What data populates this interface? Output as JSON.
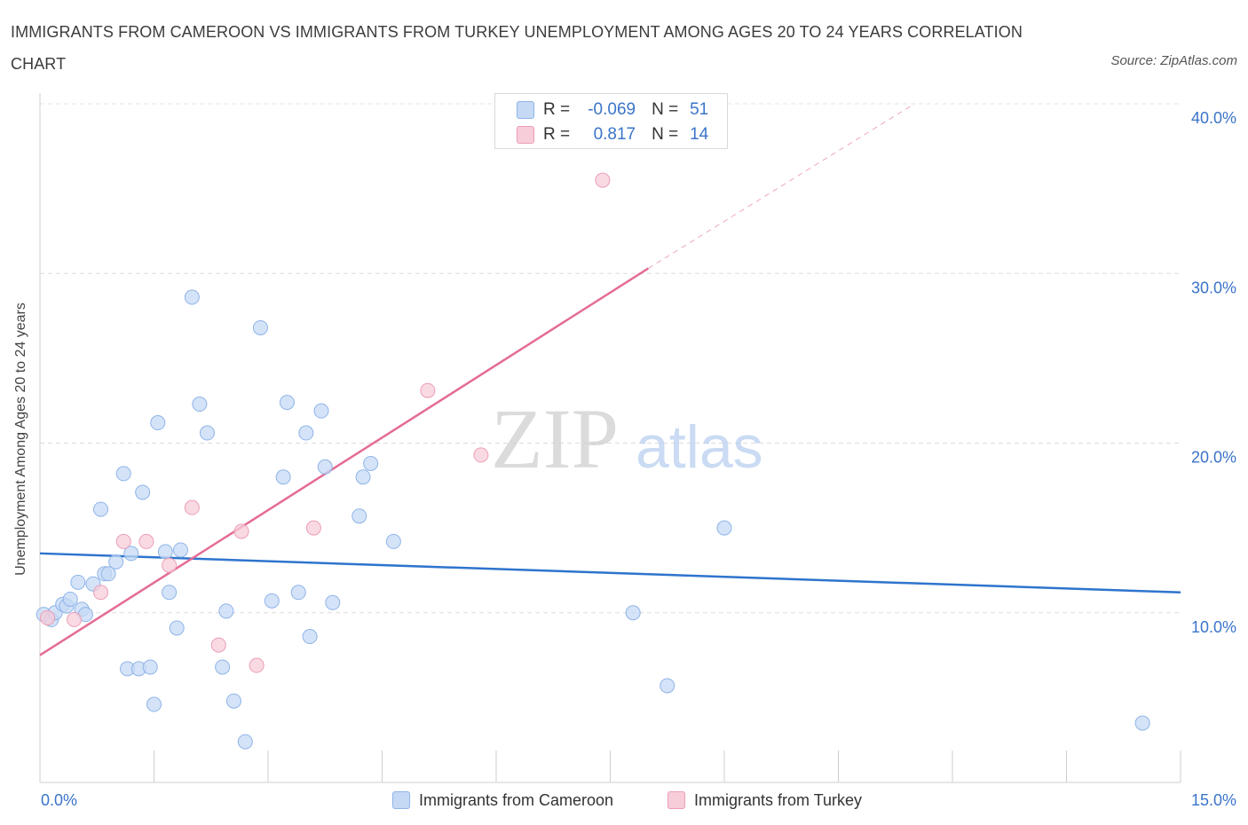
{
  "title": "IMMIGRANTS FROM CAMEROON VS IMMIGRANTS FROM TURKEY UNEMPLOYMENT AMONG AGES 20 TO 24 YEARS CORRELATION CHART",
  "source": "Source: ZipAtlas.com",
  "watermark": {
    "zip": "ZIP",
    "atlas": "atlas"
  },
  "legend": {
    "r_label": "R =",
    "n_label": "N =",
    "series": [
      {
        "r": "-0.069",
        "n": "51"
      },
      {
        "r": "0.817",
        "n": "14"
      }
    ]
  },
  "colors": {
    "cameroon_fill": "#c5d9f5",
    "cameroon_stroke": "#8fb4e8",
    "cameroon_line": "#2e74cd",
    "turkey_fill": "#f7cdd9",
    "turkey_stroke": "#ec9db6",
    "turkey_line": "#e46c93",
    "axis_text": "#3a74c9"
  },
  "chart_data": {
    "type": "scatter",
    "title": "IMMIGRANTS FROM CAMEROON VS IMMIGRANTS FROM TURKEY UNEMPLOYMENT AMONG AGES 20 TO 24 YEARS CORRELATION CHART",
    "xlabel": "",
    "ylabel": "Unemployment Among Ages 20 to 24 years",
    "xlim": [
      0,
      15
    ],
    "ylim": [
      0,
      40
    ],
    "x_tick_labels": [
      "0.0%",
      "15.0%"
    ],
    "y_ticks": [
      10,
      20,
      30,
      40
    ],
    "y_tick_labels": [
      "10.0%",
      "20.0%",
      "30.0%",
      "40.0%"
    ],
    "grid": true,
    "legend_position": "top-center",
    "series": [
      {
        "name": "Immigrants from Cameroon",
        "points": [
          [
            0.05,
            9.9
          ],
          [
            0.15,
            9.6
          ],
          [
            0.2,
            10.0
          ],
          [
            0.3,
            10.5
          ],
          [
            0.35,
            10.4
          ],
          [
            0.4,
            10.8
          ],
          [
            0.5,
            11.8
          ],
          [
            0.55,
            10.2
          ],
          [
            0.6,
            9.9
          ],
          [
            0.7,
            11.7
          ],
          [
            0.8,
            16.1
          ],
          [
            0.85,
            12.3
          ],
          [
            0.9,
            12.3
          ],
          [
            1.0,
            13.0
          ],
          [
            1.1,
            18.2
          ],
          [
            1.15,
            6.7
          ],
          [
            1.2,
            13.5
          ],
          [
            1.3,
            6.7
          ],
          [
            1.35,
            17.1
          ],
          [
            1.45,
            6.8
          ],
          [
            1.5,
            4.6
          ],
          [
            1.55,
            21.2
          ],
          [
            1.65,
            13.6
          ],
          [
            1.7,
            11.2
          ],
          [
            1.8,
            9.1
          ],
          [
            1.85,
            13.7
          ],
          [
            2.0,
            28.6
          ],
          [
            2.1,
            22.3
          ],
          [
            2.2,
            20.6
          ],
          [
            2.4,
            6.8
          ],
          [
            2.45,
            10.1
          ],
          [
            2.55,
            4.8
          ],
          [
            2.7,
            2.4
          ],
          [
            2.9,
            26.8
          ],
          [
            3.05,
            10.7
          ],
          [
            3.2,
            18.0
          ],
          [
            3.25,
            22.4
          ],
          [
            3.4,
            11.2
          ],
          [
            3.5,
            20.6
          ],
          [
            3.55,
            8.6
          ],
          [
            3.7,
            21.9
          ],
          [
            3.75,
            18.6
          ],
          [
            3.85,
            10.6
          ],
          [
            4.2,
            15.7
          ],
          [
            4.25,
            18.0
          ],
          [
            4.35,
            18.8
          ],
          [
            4.65,
            14.2
          ],
          [
            7.8,
            10.0
          ],
          [
            8.25,
            5.7
          ],
          [
            9.0,
            15.0
          ],
          [
            14.5,
            3.5
          ]
        ],
        "trend": {
          "x": [
            0,
            15
          ],
          "y": [
            13.5,
            11.2
          ]
        }
      },
      {
        "name": "Immigrants from Turkey",
        "points": [
          [
            0.1,
            9.7
          ],
          [
            0.45,
            9.6
          ],
          [
            0.8,
            11.2
          ],
          [
            1.1,
            14.2
          ],
          [
            1.4,
            14.2
          ],
          [
            1.7,
            12.8
          ],
          [
            2.0,
            16.2
          ],
          [
            2.35,
            8.1
          ],
          [
            2.65,
            14.8
          ],
          [
            2.85,
            6.9
          ],
          [
            3.6,
            15.0
          ],
          [
            5.1,
            23.1
          ],
          [
            5.8,
            19.3
          ],
          [
            7.4,
            35.5
          ]
        ],
        "trend": {
          "x": [
            0,
            8.0
          ],
          "y": [
            7.5,
            30.3
          ]
        },
        "trend_extension": {
          "x": [
            8.0,
            11.5
          ],
          "y": [
            30.3,
            40.0
          ]
        }
      }
    ]
  }
}
